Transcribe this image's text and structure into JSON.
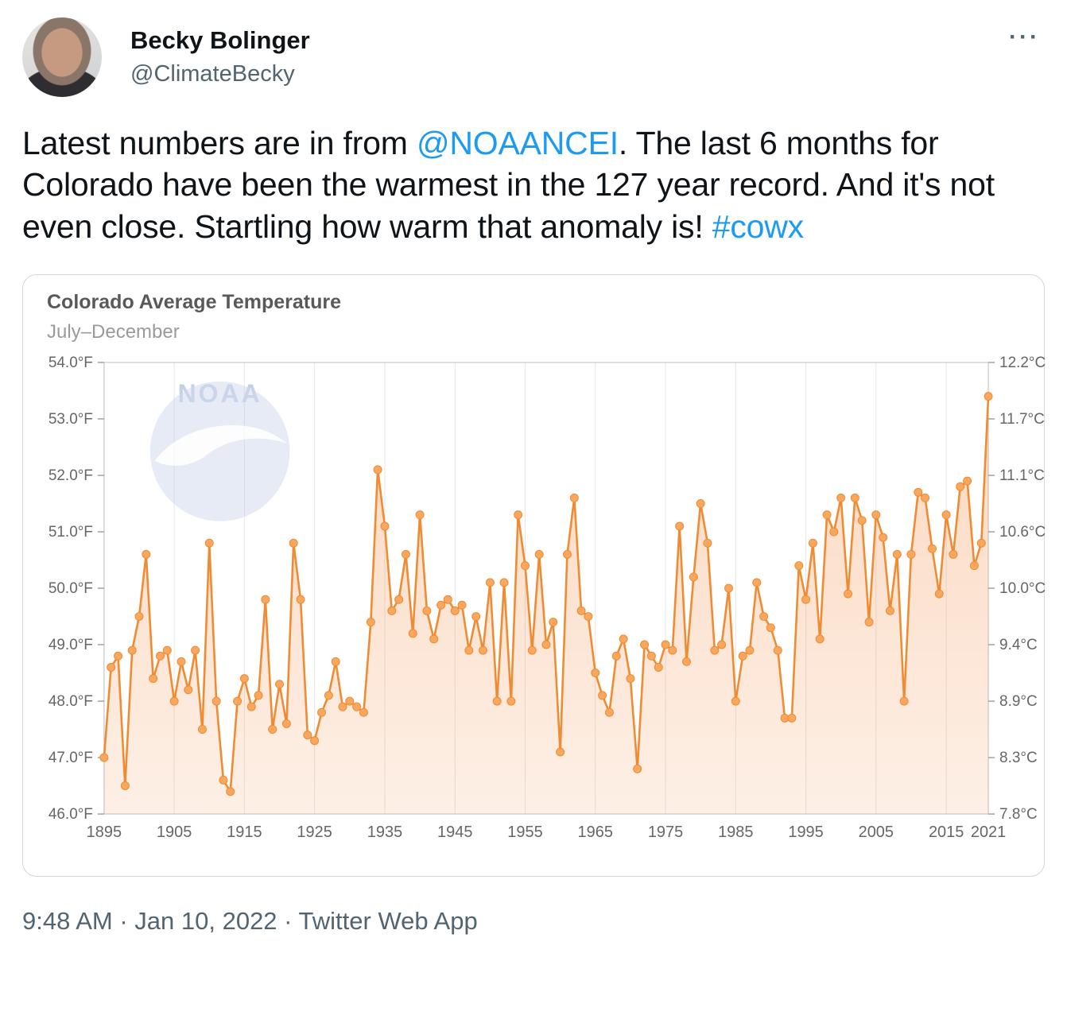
{
  "tweet": {
    "author_name": "Becky Bolinger",
    "author_handle": "@ClimateBecky",
    "body": [
      {
        "type": "text",
        "text": "Latest numbers are in from "
      },
      {
        "type": "link",
        "text": "@NOAANCEI"
      },
      {
        "type": "text",
        "text": ". The last 6 months for Colorado have been the warmest in the 127 year record. And it's not even close. Startling how warm that anomaly is! "
      },
      {
        "type": "link",
        "text": "#cowx"
      }
    ],
    "timestamp": "9:48 AM · Jan 10, 2022 · Twitter Web App"
  },
  "icons": {
    "more": "···"
  },
  "colors": {
    "link_blue": "#1d9bf0",
    "text": "#0f1419",
    "muted": "#536471",
    "chart_line": "#ef8b33",
    "chart_area": "#f4914c",
    "grid": "#e6e6e6",
    "axis_label": "#666666",
    "watermark_blue": "#c9d4ea"
  },
  "chart_data": {
    "type": "line",
    "title": "Colorado Average Temperature",
    "subtitle": "July–December",
    "watermark": "NOAA",
    "x_years": {
      "start": 1895,
      "end": 2021,
      "step": 1
    },
    "values": [
      47.0,
      48.6,
      48.8,
      46.5,
      48.9,
      49.5,
      50.6,
      48.4,
      48.8,
      48.9,
      48.0,
      48.7,
      48.2,
      48.9,
      47.5,
      50.8,
      48.0,
      46.6,
      46.4,
      48.0,
      48.4,
      47.9,
      48.1,
      49.8,
      47.5,
      48.3,
      47.6,
      50.8,
      49.8,
      47.4,
      47.3,
      47.8,
      48.1,
      48.7,
      47.9,
      48.0,
      47.9,
      47.8,
      49.4,
      52.1,
      51.1,
      49.6,
      49.8,
      50.6,
      49.2,
      51.3,
      49.6,
      49.1,
      49.7,
      49.8,
      49.6,
      49.7,
      48.9,
      49.5,
      48.9,
      50.1,
      48.0,
      50.1,
      48.0,
      51.3,
      50.4,
      48.9,
      50.6,
      49.0,
      49.4,
      47.1,
      50.6,
      51.6,
      49.6,
      49.5,
      48.5,
      48.1,
      47.8,
      48.8,
      49.1,
      48.4,
      46.8,
      49.0,
      48.8,
      48.6,
      49.0,
      48.9,
      51.1,
      48.7,
      50.2,
      51.5,
      50.8,
      48.9,
      49.0,
      50.0,
      48.0,
      48.8,
      48.9,
      50.1,
      49.5,
      49.3,
      48.9,
      47.7,
      47.7,
      50.4,
      49.8,
      50.8,
      49.1,
      51.3,
      51.0,
      51.6,
      49.9,
      51.6,
      51.2,
      49.4,
      51.3,
      50.9,
      49.6,
      50.6,
      48.0,
      50.6,
      51.7,
      51.6,
      50.7,
      49.9,
      51.3,
      50.6,
      51.8,
      51.9,
      50.4,
      50.8,
      53.4
    ],
    "ylim_f": [
      46.0,
      54.0
    ],
    "yticks_f": [
      "54.0°F",
      "53.0°F",
      "52.0°F",
      "51.0°F",
      "50.0°F",
      "49.0°F",
      "48.0°F",
      "47.0°F",
      "46.0°F"
    ],
    "yticks_c": [
      "12.2°C",
      "11.7°C",
      "11.1°C",
      "10.6°C",
      "10.0°C",
      "9.4°C",
      "8.9°C",
      "8.3°C",
      "7.8°C"
    ],
    "xticks": [
      1895,
      1905,
      1915,
      1925,
      1935,
      1945,
      1955,
      1965,
      1975,
      1985,
      1995,
      2005,
      2015,
      2021
    ],
    "legend": "none",
    "grid": "vertical-only"
  }
}
